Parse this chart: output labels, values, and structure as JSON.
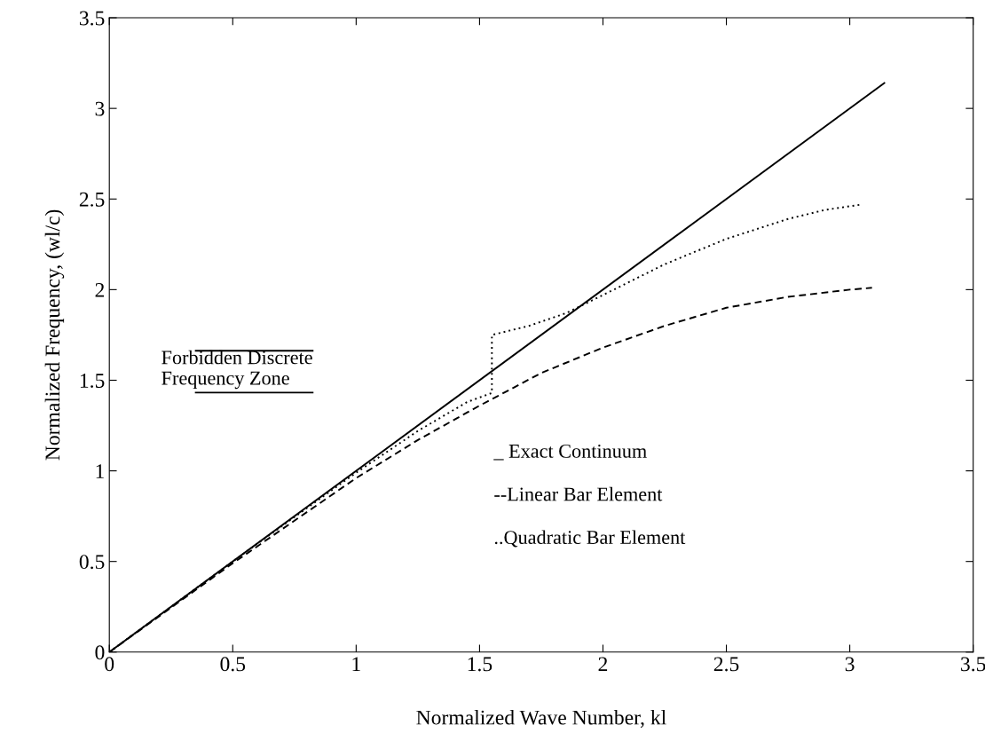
{
  "chart_data": {
    "type": "line",
    "xlabel": "Normalized Wave Number, kl",
    "ylabel": "Normalized Frequency, (wl/c)",
    "xlim": [
      0,
      3.5
    ],
    "ylim": [
      0,
      3.5
    ],
    "xticks": [
      0,
      0.5,
      1,
      1.5,
      2,
      2.5,
      3,
      3.5
    ],
    "yticks": [
      0,
      0.5,
      1,
      1.5,
      2,
      2.5,
      3,
      3.5
    ],
    "grid": false,
    "series": [
      {
        "color": "#000000",
        "line_style": "solid",
        "x": [
          0,
          3.14
        ],
        "values": [
          0,
          3.14
        ]
      },
      {
        "color": "#000000",
        "line_style": "dashed",
        "x": [
          0,
          0.5,
          1,
          1.25,
          1.5,
          1.57,
          1.75,
          2,
          2.25,
          2.5,
          2.75,
          3,
          3.09
        ],
        "values": [
          0,
          0.49,
          0.96,
          1.17,
          1.36,
          1.41,
          1.54,
          1.68,
          1.8,
          1.9,
          1.96,
          2.0,
          2.01
        ]
      },
      {
        "color": "#000000",
        "line_style": "dotted",
        "x": [
          0,
          0.5,
          1,
          1.25,
          1.45,
          1.55,
          1.55,
          1.7,
          1.85,
          2,
          2.25,
          2.5,
          2.75,
          2.9,
          3.05
        ],
        "values": [
          0,
          0.5,
          0.99,
          1.22,
          1.38,
          1.43,
          1.75,
          1.8,
          1.87,
          1.97,
          2.14,
          2.28,
          2.39,
          2.44,
          2.47
        ]
      }
    ],
    "annotations": [
      "Forbidden Discrete\nFrequency Zone",
      "_ Exact Continuum",
      "--Linear Bar Element",
      "..Quadratic Bar Element"
    ]
  }
}
